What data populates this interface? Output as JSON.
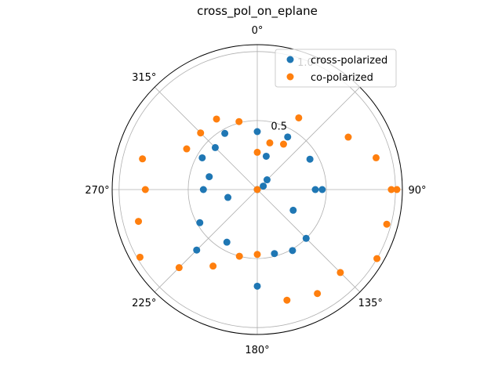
{
  "chart_data": {
    "type": "scatter",
    "projection": "polar",
    "title": "cross_pol_on_eplane",
    "theta_direction": "clockwise",
    "theta_zero": "top",
    "rlim": [
      0,
      1.05
    ],
    "grid": true,
    "legend_position": "top-right",
    "theta_ticks": [
      {
        "angle": 0,
        "label": "0°"
      },
      {
        "angle": 45,
        "label": ""
      },
      {
        "angle": 90,
        "label": "90°"
      },
      {
        "angle": 135,
        "label": "135°"
      },
      {
        "angle": 180,
        "label": "180°"
      },
      {
        "angle": 225,
        "label": "225°"
      },
      {
        "angle": 270,
        "label": "270°"
      },
      {
        "angle": 315,
        "label": "315°"
      }
    ],
    "r_ticks": [
      {
        "value": 0.5,
        "label": "0.5"
      },
      {
        "value": 1.0,
        "label": "1.0"
      }
    ],
    "series": [
      {
        "name": "cross-polarized",
        "color": "#1f77b4",
        "points": [
          {
            "theta": 0,
            "r": 0.42
          },
          {
            "theta": 30,
            "r": 0.44
          },
          {
            "theta": 15,
            "r": 0.25
          },
          {
            "theta": 45,
            "r": 0.1
          },
          {
            "theta": 60,
            "r": 0.05
          },
          {
            "theta": 60,
            "r": 0.44
          },
          {
            "theta": 90,
            "r": 0.42
          },
          {
            "theta": 90,
            "r": 0.47
          },
          {
            "theta": 120,
            "r": 0.3
          },
          {
            "theta": 135,
            "r": 0.5
          },
          {
            "theta": 150,
            "r": 0.51
          },
          {
            "theta": 165,
            "r": 0.48
          },
          {
            "theta": 180,
            "r": 0.7
          },
          {
            "theta": 210,
            "r": 0.44
          },
          {
            "theta": 225,
            "r": 0.62
          },
          {
            "theta": 240,
            "r": 0.48
          },
          {
            "theta": 255,
            "r": 0.22
          },
          {
            "theta": 270,
            "r": 0.39
          },
          {
            "theta": 285,
            "r": 0.36
          },
          {
            "theta": 300,
            "r": 0.46
          },
          {
            "theta": 315,
            "r": 0.43
          },
          {
            "theta": 330,
            "r": 0.47
          },
          {
            "theta": 0,
            "r": 0.0
          }
        ]
      },
      {
        "name": "co-polarized",
        "color": "#ff7f0e",
        "points": [
          {
            "theta": 0,
            "r": 0.27
          },
          {
            "theta": 15,
            "r": 0.35
          },
          {
            "theta": 30,
            "r": 0.6
          },
          {
            "theta": 30,
            "r": 0.38
          },
          {
            "theta": 60,
            "r": 0.76
          },
          {
            "theta": 75,
            "r": 0.89
          },
          {
            "theta": 90,
            "r": 0.97
          },
          {
            "theta": 90,
            "r": 1.01
          },
          {
            "theta": 105,
            "r": 0.97
          },
          {
            "theta": 120,
            "r": 1.0
          },
          {
            "theta": 135,
            "r": 0.85
          },
          {
            "theta": 150,
            "r": 0.87
          },
          {
            "theta": 165,
            "r": 0.83
          },
          {
            "theta": 180,
            "r": 0.47
          },
          {
            "theta": 195,
            "r": 0.5
          },
          {
            "theta": 210,
            "r": 0.64
          },
          {
            "theta": 225,
            "r": 0.8
          },
          {
            "theta": 240,
            "r": 0.98
          },
          {
            "theta": 255,
            "r": 0.89
          },
          {
            "theta": 270,
            "r": 0.81
          },
          {
            "theta": 285,
            "r": 0.86
          },
          {
            "theta": 300,
            "r": 0.59
          },
          {
            "theta": 315,
            "r": 0.58
          },
          {
            "theta": 330,
            "r": 0.59
          },
          {
            "theta": 345,
            "r": 0.51
          },
          {
            "theta": 0,
            "r": 0.0
          }
        ]
      }
    ]
  }
}
